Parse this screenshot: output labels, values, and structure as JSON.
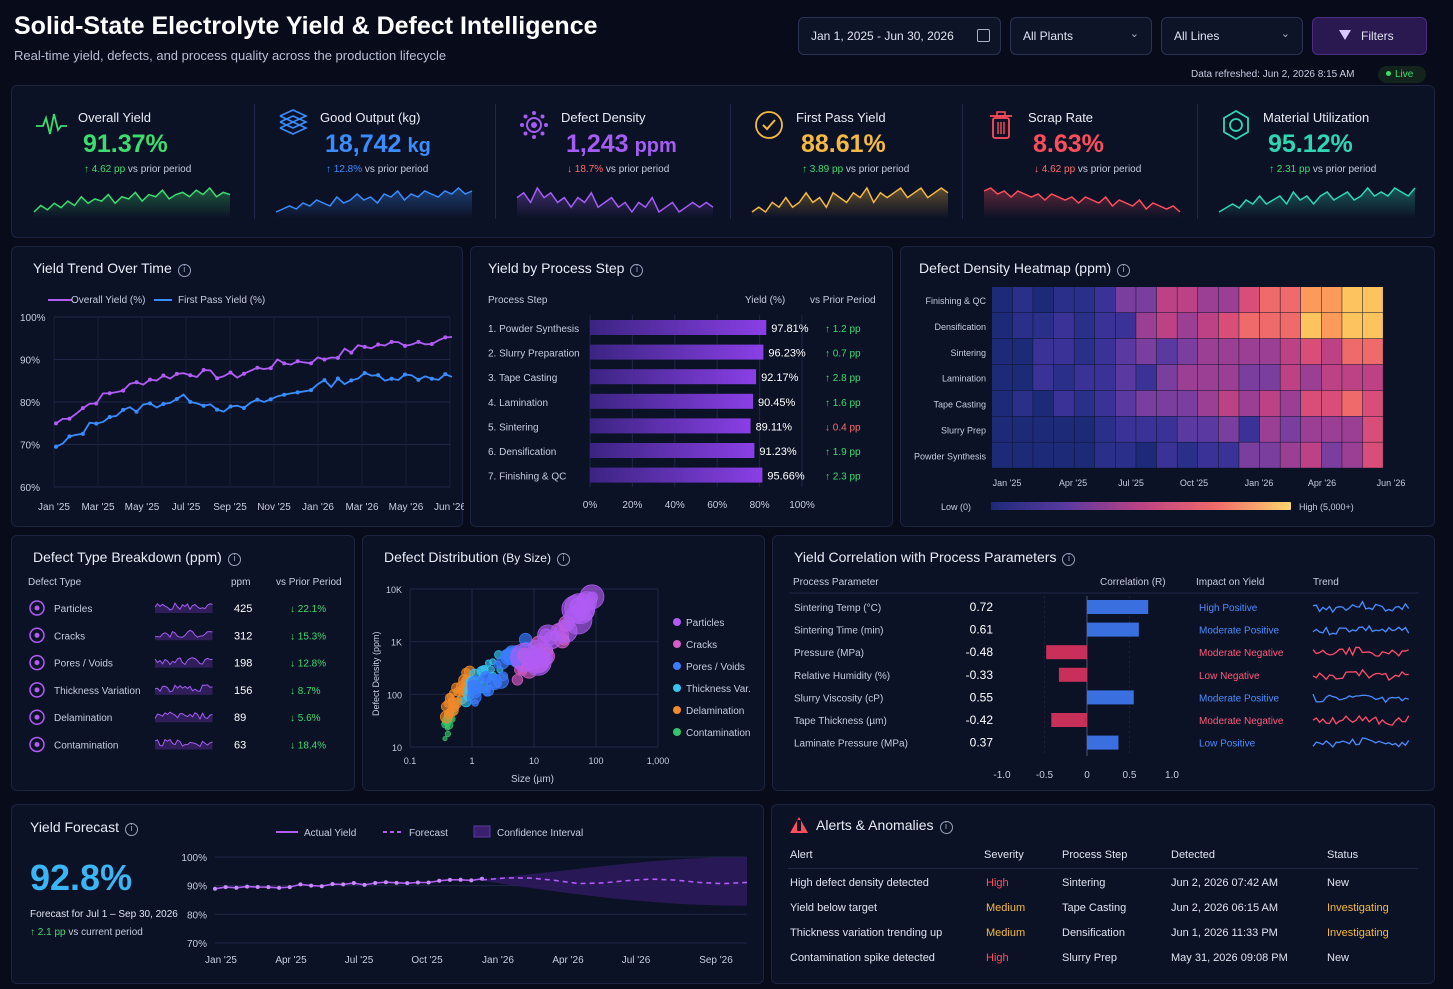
{
  "header": {
    "title": "Solid-State Electrolyte Yield & Defect Intelligence",
    "subtitle": "Real-time yield, defects, and process quality across the production lifecycle",
    "date_range": "Jan 1, 2025 - Jun 30, 2026",
    "plants": "All Plants",
    "lines": "All Lines",
    "filters": "Filters",
    "refreshed": "Data refreshed: Jun 2, 2026 8:15 AM",
    "live": "Live"
  },
  "kpis": [
    {
      "name": "Overall Yield",
      "value": "91.37%",
      "delta": "4.62 pp",
      "suffix": "vs prior period",
      "arrow": "↑",
      "color": "#3ddc6e",
      "icon": "heartbeat-icon",
      "spark": [
        5,
        8,
        6,
        9,
        7,
        10,
        8,
        12,
        9,
        11,
        10,
        13,
        9,
        12,
        11,
        14,
        10,
        13,
        12,
        15,
        11,
        13,
        14,
        12,
        15,
        13,
        16,
        12,
        14,
        13
      ]
    },
    {
      "name": "Good Output (kg)",
      "value": "18,742",
      "unit": "kg",
      "delta": "12.8%",
      "suffix": "vs prior period",
      "arrow": "↑",
      "color": "#3a8dff",
      "icon": "layers-icon",
      "spark": [
        6,
        7,
        8,
        7,
        9,
        8,
        10,
        9,
        8,
        11,
        9,
        10,
        12,
        10,
        11,
        9,
        12,
        11,
        13,
        10,
        12,
        11,
        13,
        12,
        11,
        13,
        12,
        14,
        12,
        13
      ]
    },
    {
      "name": "Defect Density",
      "value": "1,243",
      "unit": "ppm",
      "delta": "18.7%",
      "suffix": "vs prior period",
      "arrow": "↓",
      "color": "#a55cf5",
      "icon": "gear-icon",
      "spark": [
        12,
        13,
        11,
        14,
        12,
        13,
        11,
        12,
        10,
        12,
        11,
        13,
        10,
        11,
        12,
        10,
        11,
        9,
        11,
        10,
        12,
        9,
        10,
        11,
        9,
        10,
        11,
        10,
        11,
        10
      ]
    },
    {
      "name": "First Pass Yield",
      "value": "88.61%",
      "delta": "3.89 pp",
      "suffix": "vs prior period",
      "arrow": "↑",
      "color": "#f4b942",
      "icon": "check-circle-icon",
      "spark": [
        8,
        9,
        8,
        10,
        9,
        11,
        9,
        10,
        12,
        10,
        11,
        9,
        12,
        11,
        10,
        12,
        11,
        13,
        10,
        12,
        11,
        12,
        13,
        11,
        12,
        13,
        11,
        12,
        13,
        12
      ]
    },
    {
      "name": "Scrap Rate",
      "value": "8.63%",
      "delta": "4.62 pp",
      "suffix": "vs prior period",
      "arrow": "↓",
      "color": "#ff4d5e",
      "icon": "trash-icon",
      "spark": [
        14,
        15,
        13,
        14,
        12,
        14,
        13,
        12,
        13,
        11,
        13,
        12,
        11,
        12,
        10,
        12,
        11,
        10,
        12,
        9,
        11,
        10,
        9,
        11,
        8,
        10,
        9,
        8,
        9,
        7
      ]
    },
    {
      "name": "Material Utilization",
      "value": "95.12%",
      "delta": "2.31 pp",
      "suffix": "vs prior period",
      "arrow": "↑",
      "color": "#2fd6b5",
      "icon": "recycle-icon",
      "spark": [
        8,
        9,
        10,
        9,
        11,
        10,
        12,
        10,
        11,
        12,
        10,
        13,
        11,
        12,
        10,
        12,
        13,
        11,
        12,
        13,
        11,
        12,
        14,
        12,
        13,
        12,
        14,
        13,
        12,
        14
      ]
    }
  ],
  "yield_trend": {
    "title": "Yield Trend Over Time",
    "legend": [
      "Overall Yield (%)",
      "First Pass Yield (%)"
    ],
    "y_ticks": [
      "100%",
      "90%",
      "80%",
      "70%",
      "60%"
    ],
    "x_ticks": [
      "Jan '25",
      "Mar '25",
      "May '25",
      "Jul '25",
      "Sep '25",
      "Nov '25",
      "Jan '26",
      "Mar '26",
      "May '26",
      "Jun '26"
    ]
  },
  "process_yield": {
    "title": "Yield by Process Step",
    "headers": [
      "Process Step",
      "Yield (%)",
      "vs Prior Period"
    ],
    "rows": [
      {
        "step": "1. Powder Synthesis",
        "value": "97.81%",
        "delta": "1.2 pp",
        "arrow": "↑",
        "good": true,
        "v": 97.81
      },
      {
        "step": "2. Slurry Preparation",
        "value": "96.23%",
        "delta": "0.7 pp",
        "arrow": "↑",
        "good": true,
        "v": 96.23
      },
      {
        "step": "3. Tape Casting",
        "value": "92.17%",
        "delta": "2.8 pp",
        "arrow": "↑",
        "good": true,
        "v": 92.17
      },
      {
        "step": "4. Lamination",
        "value": "90.45%",
        "delta": "1.6 pp",
        "arrow": "↑",
        "good": true,
        "v": 90.45
      },
      {
        "step": "5. Sintering",
        "value": "89.11%",
        "delta": "0.4 pp",
        "arrow": "↓",
        "good": false,
        "v": 89.11
      },
      {
        "step": "6. Densification",
        "value": "91.23%",
        "delta": "1.9 pp",
        "arrow": "↑",
        "good": true,
        "v": 91.23
      },
      {
        "step": "7. Finishing & QC",
        "value": "95.66%",
        "delta": "2.3 pp",
        "arrow": "↑",
        "good": true,
        "v": 95.66
      }
    ],
    "x_ticks": [
      "0%",
      "20%",
      "40%",
      "60%",
      "80%",
      "100%"
    ]
  },
  "heatmap": {
    "title": "Defect Density Heatmap (ppm)",
    "rows": [
      "Finishing & QC",
      "Densification",
      "Sintering",
      "Lamination",
      "Tape Casting",
      "Slurry Prep",
      "Powder Synthesis"
    ],
    "x_ticks": [
      "Jan '25",
      "Apr '25",
      "Jul '25",
      "Oct '25",
      "Jan '26",
      "Apr '26",
      "Jun '26"
    ],
    "low": "Low (0)",
    "high": "High (5,000+)"
  },
  "defect_types": {
    "title": "Defect Type Breakdown (ppm)",
    "headers": [
      "Defect Type",
      "ppm",
      "vs Prior Period"
    ],
    "rows": [
      {
        "name": "Particles",
        "ppm": "425",
        "delta": "22.1%",
        "arrow": "↓"
      },
      {
        "name": "Cracks",
        "ppm": "312",
        "delta": "15.3%",
        "arrow": "↓"
      },
      {
        "name": "Pores / Voids",
        "ppm": "198",
        "delta": "12.8%",
        "arrow": "↓"
      },
      {
        "name": "Thickness Variation",
        "ppm": "156",
        "delta": "8.7%",
        "arrow": "↓"
      },
      {
        "name": "Delamination",
        "ppm": "89",
        "delta": "5.6%",
        "arrow": "↓"
      },
      {
        "name": "Contamination",
        "ppm": "63",
        "delta": "18.4%",
        "arrow": "↓"
      }
    ]
  },
  "distribution": {
    "title": "Defect Distribution",
    "title_suffix": "(By Size)",
    "ylabel": "Defect Density (ppm)",
    "xlabel": "Size (µm)",
    "y_ticks": [
      "10K",
      "1K",
      "100",
      "10"
    ],
    "x_ticks": [
      "0.1",
      "1",
      "10",
      "100",
      "1,000"
    ],
    "legend": [
      {
        "name": "Particles",
        "color": "#b05cf5"
      },
      {
        "name": "Cracks",
        "color": "#d65cc8"
      },
      {
        "name": "Pores / Voids",
        "color": "#3a7dff"
      },
      {
        "name": "Thickness Var.",
        "color": "#35c4f0"
      },
      {
        "name": "Delamination",
        "color": "#f08a2a"
      },
      {
        "name": "Contamination",
        "color": "#35c46a"
      }
    ]
  },
  "correlation": {
    "title": "Yield Correlation with Process Parameters",
    "headers": [
      "Process Parameter",
      "Correlation (R)",
      "Impact on Yield",
      "Trend"
    ],
    "rows": [
      {
        "param": "Sintering Temp (°C)",
        "r": "0.72",
        "v": 0.72,
        "impact": "High Positive"
      },
      {
        "param": "Sintering Time (min)",
        "r": "0.61",
        "v": 0.61,
        "impact": "Moderate Positive"
      },
      {
        "param": "Pressure (MPa)",
        "r": "-0.48",
        "v": -0.48,
        "impact": "Moderate Negative"
      },
      {
        "param": "Relative Humidity (%)",
        "r": "-0.33",
        "v": -0.33,
        "impact": "Low Negative"
      },
      {
        "param": "Slurry Viscosity (cP)",
        "r": "0.55",
        "v": 0.55,
        "impact": "Moderate Positive"
      },
      {
        "param": "Tape Thickness (µm)",
        "r": "-0.42",
        "v": -0.42,
        "impact": "Moderate Negative"
      },
      {
        "param": "Laminate Pressure (MPa)",
        "r": "0.37",
        "v": 0.37,
        "impact": "Low Positive"
      }
    ],
    "x_ticks": [
      "-1.0",
      "-0.5",
      "0",
      "0.5",
      "1.0"
    ]
  },
  "forecast": {
    "title": "Yield Forecast",
    "value": "92.8%",
    "period": "Forecast for Jul 1 – Sep 30, 2026",
    "delta": "2.1 pp",
    "delta_suffix": "vs current period",
    "legend": [
      "Actual Yield",
      "Forecast",
      "Confidence Interval"
    ],
    "y_ticks": [
      "100%",
      "90%",
      "80%",
      "70%"
    ],
    "x_ticks": [
      "Jan '25",
      "Apr '25",
      "Jul '25",
      "Oct '25",
      "Jan '26",
      "Apr '26",
      "Jul '26",
      "Sep '26"
    ]
  },
  "alerts": {
    "title": "Alerts & Anomalies",
    "headers": [
      "Alert",
      "Severity",
      "Process Step",
      "Detected",
      "Status"
    ],
    "rows": [
      {
        "alert": "High defect density detected",
        "severity": "High",
        "step": "Sintering",
        "detected": "Jun 2, 2026 07:42 AM",
        "status": "New"
      },
      {
        "alert": "Yield below target",
        "severity": "Medium",
        "step": "Tape Casting",
        "detected": "Jun 2, 2026 06:15 AM",
        "status": "Investigating"
      },
      {
        "alert": "Thickness variation trending up",
        "severity": "Medium",
        "step": "Densification",
        "detected": "Jun 1, 2026 11:33 PM",
        "status": "Investigating"
      },
      {
        "alert": "Contamination spike detected",
        "severity": "High",
        "step": "Slurry Prep",
        "detected": "May 31, 2026 09:08 PM",
        "status": "New"
      }
    ]
  },
  "chart_data": [
    {
      "type": "line",
      "title": "Yield Trend Over Time",
      "x": [
        "Jan '25",
        "Mar '25",
        "May '25",
        "Jul '25",
        "Sep '25",
        "Nov '25",
        "Jan '26",
        "Mar '26",
        "May '26",
        "Jun '26"
      ],
      "series": [
        {
          "name": "Overall Yield (%)",
          "values": [
            75,
            81,
            85,
            87,
            86,
            89,
            90,
            93,
            94,
            95
          ]
        },
        {
          "name": "First Pass Yield (%)",
          "values": [
            69,
            76,
            79,
            81,
            78,
            81,
            84,
            86,
            86,
            86
          ]
        }
      ],
      "ylim": [
        60,
        100
      ]
    },
    {
      "type": "bar",
      "title": "Yield by Process Step",
      "categories": [
        "1. Powder Synthesis",
        "2. Slurry Preparation",
        "3. Tape Casting",
        "4. Lamination",
        "5. Sintering",
        "6. Densification",
        "7. Finishing & QC"
      ],
      "values": [
        97.81,
        96.23,
        92.17,
        90.45,
        89.11,
        91.23,
        95.66
      ],
      "xlim": [
        0,
        100
      ]
    },
    {
      "type": "bar",
      "title": "Yield Correlation with Process Parameters",
      "categories": [
        "Sintering Temp (°C)",
        "Sintering Time (min)",
        "Pressure (MPa)",
        "Relative Humidity (%)",
        "Slurry Viscosity (cP)",
        "Tape Thickness (µm)",
        "Laminate Pressure (MPa)"
      ],
      "values": [
        0.72,
        0.61,
        -0.48,
        -0.33,
        0.55,
        -0.42,
        0.37
      ],
      "xlim": [
        -1,
        1
      ]
    },
    {
      "type": "line",
      "title": "Yield Forecast",
      "x": [
        "Jan '25",
        "Apr '25",
        "Jul '25",
        "Oct '25",
        "Jan '26",
        "Apr '26",
        "Jul '26",
        "Sep '26"
      ],
      "series": [
        {
          "name": "Actual Yield",
          "values": [
            89,
            90,
            90,
            91,
            92,
            null,
            null,
            null
          ]
        },
        {
          "name": "Forecast",
          "values": [
            null,
            null,
            null,
            null,
            92,
            91,
            92,
            92
          ]
        }
      ],
      "ylim": [
        70,
        100
      ]
    }
  ]
}
